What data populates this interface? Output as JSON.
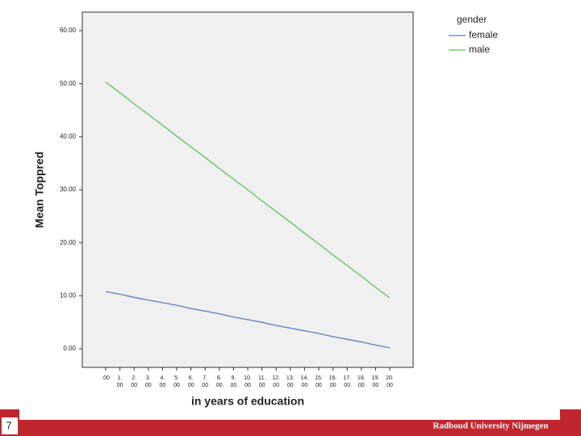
{
  "chart_data": {
    "type": "line",
    "x_label": "in years of education",
    "y_label": "Mean Toppred",
    "categories": [
      ".00",
      "1.00",
      "2.00",
      "3.00",
      "4.00",
      "5.00",
      "6.00",
      "7.00",
      "8.00",
      "9.00",
      "10.00",
      "11.00",
      "12.00",
      "13.00",
      "14.00",
      "15.00",
      "16.00",
      "17.00",
      "18.00",
      "19.00",
      "20.00"
    ],
    "legend_title": "gender",
    "series": [
      {
        "name": "female",
        "color": "#5b7ec6",
        "values": [
          10.8,
          10.3,
          9.7,
          9.2,
          8.7,
          8.2,
          7.6,
          7.1,
          6.6,
          6.0,
          5.5,
          5.0,
          4.4,
          3.9,
          3.4,
          2.9,
          2.3,
          1.8,
          1.3,
          0.7,
          0.2
        ]
      },
      {
        "name": "male",
        "color": "#5cc45c",
        "values": [
          50.3,
          48.3,
          46.2,
          44.2,
          42.2,
          40.1,
          38.1,
          36.1,
          34.0,
          32.0,
          30.0,
          27.9,
          25.9,
          23.9,
          21.8,
          19.8,
          17.7,
          15.7,
          13.7,
          11.6,
          9.6
        ]
      }
    ],
    "ylim": [
      -3.5,
      63.5
    ],
    "yticks": [
      {
        "value": 0,
        "label": "0.00"
      },
      {
        "value": 10,
        "label": "10.00"
      },
      {
        "value": 20,
        "label": "20.00"
      },
      {
        "value": 30,
        "label": "30.00"
      },
      {
        "value": 40,
        "label": "40.00"
      },
      {
        "value": 50,
        "label": "50.00"
      },
      {
        "value": 60,
        "label": "60.00"
      }
    ],
    "grid": false
  },
  "slide": {
    "number": "7",
    "footer": "Radboud University Nijmegen"
  }
}
